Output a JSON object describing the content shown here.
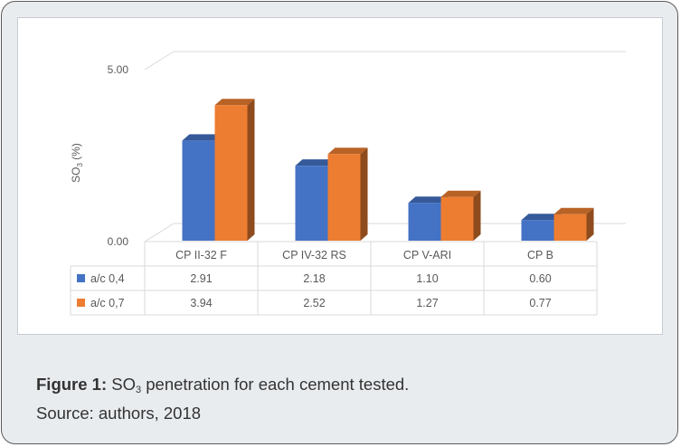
{
  "chart_data": {
    "type": "bar",
    "style": "3d-clustered-column-with-data-table",
    "categories": [
      "CP II-32 F",
      "CP IV-32 RS",
      "CP V-ARI",
      "CP B"
    ],
    "series": [
      {
        "name": "a/c 0,4",
        "color": "#4472c4",
        "values": [
          2.91,
          2.18,
          1.1,
          0.6
        ],
        "labels": [
          "2.91",
          "2.18",
          "1.10",
          "0.60"
        ]
      },
      {
        "name": "a/c 0,7",
        "color": "#ed7d31",
        "values": [
          3.94,
          2.52,
          1.27,
          0.77
        ],
        "labels": [
          "3.94",
          "2.52",
          "1.27",
          "0.77"
        ]
      }
    ],
    "ylabel_main": "SO",
    "ylabel_sub": "3",
    "ylabel_unit": "(%)",
    "ylim": [
      0,
      5
    ],
    "yticks": [
      0,
      5
    ],
    "ytick_labels": [
      "0.00",
      "5.00"
    ],
    "grid": true,
    "legend": "data-table-left"
  },
  "caption": {
    "label": "Figure 1:",
    "text_before_sub": "SO",
    "sub": "3",
    "text_after_sub": " penetration for each cement tested.",
    "source": "Source: authors, 2018"
  }
}
